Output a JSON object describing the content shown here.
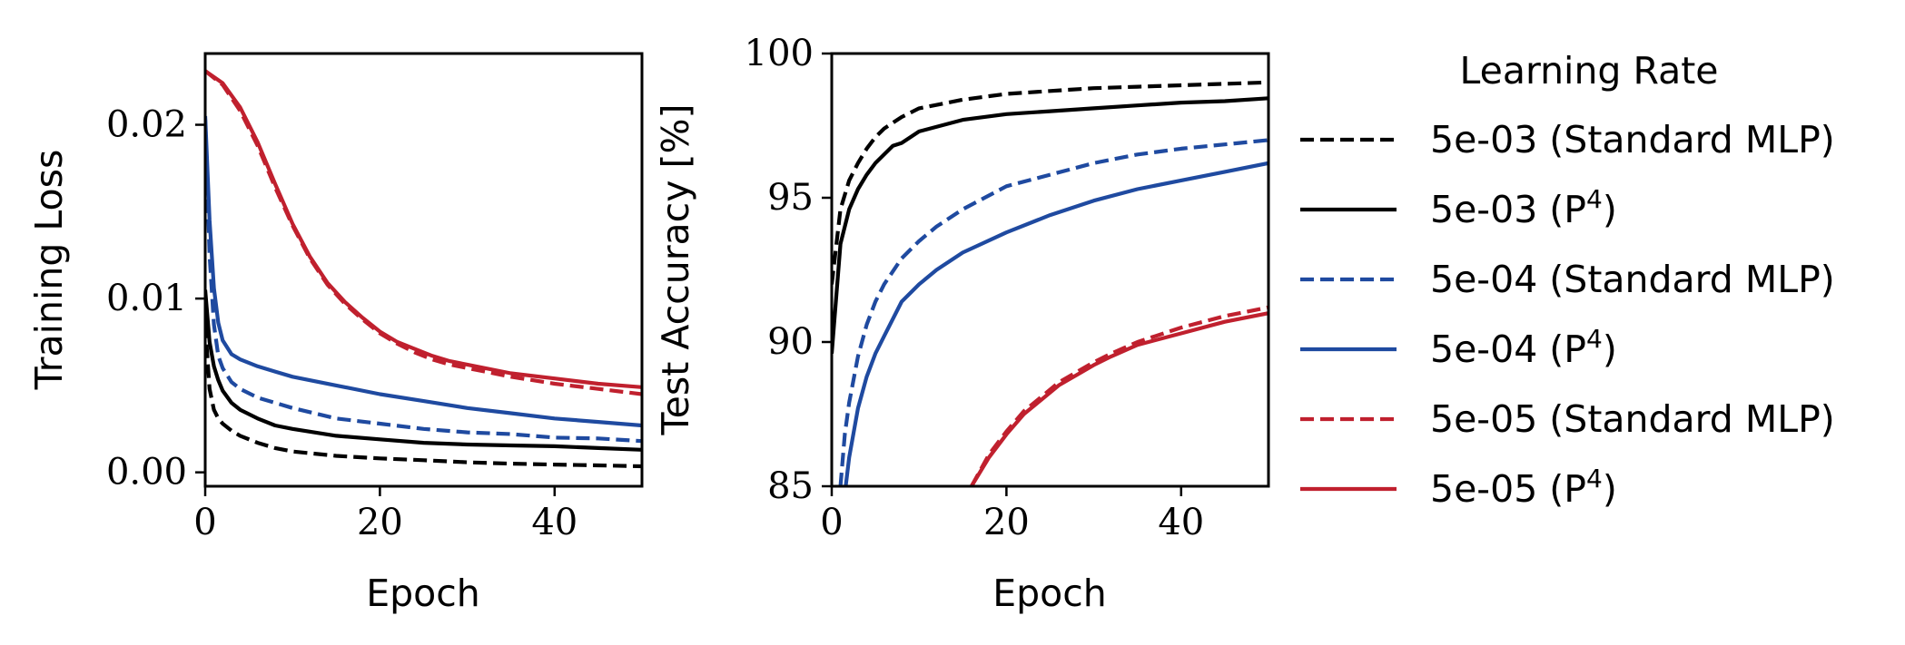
{
  "colors": {
    "black": "#000000",
    "blue": "#1f4aa0",
    "red": "#c0202e"
  },
  "legend": {
    "title": "Learning Rate",
    "entries": [
      {
        "label": "5e-03 (Standard MLP)",
        "color": "black",
        "dash": true
      },
      {
        "label": "5e-03 (P",
        "sup": "4",
        "suffix": ")",
        "color": "black",
        "dash": false
      },
      {
        "label": "5e-04 (Standard MLP)",
        "color": "blue",
        "dash": true
      },
      {
        "label": "5e-04 (P",
        "sup": "4",
        "suffix": ")",
        "color": "blue",
        "dash": false
      },
      {
        "label": "5e-05 (Standard MLP)",
        "color": "red",
        "dash": true
      },
      {
        "label": "5e-05 (P",
        "sup": "4",
        "suffix": ")",
        "color": "red",
        "dash": false
      }
    ]
  },
  "chart_data": [
    {
      "type": "line",
      "xlabel": "Epoch",
      "ylabel": "Training Loss",
      "xlim": [
        0,
        50
      ],
      "ylim": [
        -0.0008,
        0.0241
      ],
      "xticks": [
        0,
        20,
        40
      ],
      "xtick_labels": [
        "0",
        "20",
        "40"
      ],
      "yticks": [
        0.0,
        0.01,
        0.02
      ],
      "ytick_labels": [
        "0.00",
        "0.01",
        "0.02"
      ],
      "series": [
        {
          "name": "5e-03 (Standard MLP)",
          "color": "black",
          "dash": true,
          "x": [
            0,
            0.5,
            1,
            1.5,
            2,
            3,
            4,
            6,
            8,
            10,
            15,
            20,
            25,
            30,
            35,
            40,
            45,
            50
          ],
          "y": [
            0.0085,
            0.0048,
            0.0036,
            0.0031,
            0.0028,
            0.0024,
            0.0021,
            0.0017,
            0.0014,
            0.0012,
            0.00095,
            0.0008,
            0.0007,
            0.00058,
            0.0005,
            0.00045,
            0.0004,
            0.00035
          ]
        },
        {
          "name": "5e-03 (P4)",
          "color": "black",
          "dash": false,
          "x": [
            0,
            0.5,
            1,
            1.5,
            2,
            3,
            4,
            6,
            8,
            10,
            15,
            20,
            25,
            30,
            35,
            40,
            45,
            50
          ],
          "y": [
            0.0105,
            0.0075,
            0.0061,
            0.0053,
            0.0047,
            0.004,
            0.0036,
            0.0031,
            0.0027,
            0.0025,
            0.0021,
            0.0019,
            0.0017,
            0.0016,
            0.00155,
            0.0015,
            0.0014,
            0.0013
          ]
        },
        {
          "name": "5e-04 (Standard MLP)",
          "color": "blue",
          "dash": true,
          "x": [
            0,
            0.5,
            1,
            1.5,
            2,
            3,
            4,
            6,
            8,
            10,
            15,
            20,
            25,
            30,
            35,
            40,
            45,
            50
          ],
          "y": [
            0.0203,
            0.0125,
            0.0085,
            0.0067,
            0.006,
            0.0052,
            0.0048,
            0.0043,
            0.004,
            0.0037,
            0.0031,
            0.0028,
            0.0025,
            0.0023,
            0.0022,
            0.002,
            0.00195,
            0.0018
          ]
        },
        {
          "name": "5e-04 (P4)",
          "color": "blue",
          "dash": false,
          "x": [
            0,
            0.5,
            1,
            1.5,
            2,
            3,
            4,
            6,
            8,
            10,
            15,
            20,
            25,
            30,
            35,
            40,
            45,
            50
          ],
          "y": [
            0.0205,
            0.0145,
            0.0106,
            0.0086,
            0.0076,
            0.0068,
            0.0065,
            0.0061,
            0.0058,
            0.0055,
            0.005,
            0.0045,
            0.0041,
            0.0037,
            0.0034,
            0.0031,
            0.0029,
            0.0027
          ]
        },
        {
          "name": "5e-05 (Standard MLP)",
          "color": "red",
          "dash": true,
          "x": [
            0,
            2,
            4,
            6,
            8,
            10,
            12,
            14,
            16,
            18,
            20,
            22,
            24,
            26,
            28,
            30,
            35,
            40,
            45,
            50
          ],
          "y": [
            0.0231,
            0.0223,
            0.0208,
            0.0188,
            0.0164,
            0.0142,
            0.0123,
            0.0108,
            0.0097,
            0.0088,
            0.008,
            0.0074,
            0.0069,
            0.0065,
            0.0062,
            0.006,
            0.0055,
            0.0051,
            0.0048,
            0.0045
          ]
        },
        {
          "name": "5e-05 (P4)",
          "color": "red",
          "dash": false,
          "x": [
            0,
            2,
            4,
            6,
            8,
            10,
            12,
            14,
            16,
            18,
            20,
            22,
            24,
            26,
            28,
            30,
            35,
            40,
            45,
            50
          ],
          "y": [
            0.0231,
            0.0224,
            0.021,
            0.019,
            0.0166,
            0.0143,
            0.0124,
            0.0109,
            0.0098,
            0.0089,
            0.0081,
            0.0075,
            0.0071,
            0.0067,
            0.0064,
            0.0062,
            0.0057,
            0.0054,
            0.0051,
            0.0049
          ]
        }
      ]
    },
    {
      "type": "line",
      "xlabel": "Epoch",
      "ylabel": "Test Accuracy [%]",
      "xlim": [
        0,
        50
      ],
      "ylim": [
        85,
        100
      ],
      "xticks": [
        0,
        20,
        40
      ],
      "xtick_labels": [
        "0",
        "20",
        "40"
      ],
      "yticks": [
        85,
        90,
        95,
        100
      ],
      "ytick_labels": [
        "85",
        "90",
        "95",
        "100"
      ],
      "series": [
        {
          "name": "5e-03 (Standard MLP)",
          "color": "black",
          "dash": true,
          "x": [
            0,
            0.5,
            1,
            2,
            3,
            4,
            5,
            6,
            8,
            10,
            15,
            20,
            25,
            30,
            35,
            40,
            45,
            50
          ],
          "y": [
            92.0,
            93.3,
            94.6,
            95.6,
            96.2,
            96.7,
            97.1,
            97.4,
            97.8,
            98.1,
            98.4,
            98.6,
            98.7,
            98.8,
            98.85,
            98.9,
            98.95,
            99.0
          ]
        },
        {
          "name": "5e-03 (P4)",
          "color": "black",
          "dash": false,
          "x": [
            0,
            0.5,
            1,
            2,
            3,
            4,
            5,
            6,
            7,
            8,
            10,
            15,
            20,
            25,
            30,
            35,
            40,
            45,
            50
          ],
          "y": [
            89.6,
            91.5,
            93.4,
            94.6,
            95.3,
            95.8,
            96.2,
            96.5,
            96.8,
            96.9,
            97.3,
            97.7,
            97.9,
            98.0,
            98.1,
            98.2,
            98.3,
            98.35,
            98.45
          ]
        },
        {
          "name": "5e-04 (Standard MLP)",
          "color": "blue",
          "dash": true,
          "x": [
            1.0,
            1.5,
            2,
            3,
            4,
            5,
            6,
            8,
            10,
            12,
            15,
            20,
            25,
            30,
            35,
            40,
            45,
            50
          ],
          "y": [
            85.0,
            86.8,
            87.9,
            89.5,
            90.6,
            91.4,
            92.0,
            92.9,
            93.5,
            94.0,
            94.6,
            95.4,
            95.8,
            96.2,
            96.5,
            96.7,
            96.85,
            97.0
          ]
        },
        {
          "name": "5e-04 (P4)",
          "color": "blue",
          "dash": false,
          "x": [
            1.6,
            2,
            3,
            4,
            5,
            6,
            8,
            10,
            12,
            15,
            20,
            25,
            30,
            35,
            40,
            45,
            50
          ],
          "y": [
            85.0,
            86.0,
            87.7,
            88.8,
            89.6,
            90.2,
            91.4,
            92.0,
            92.5,
            93.1,
            93.8,
            94.4,
            94.9,
            95.3,
            95.6,
            95.9,
            96.2
          ]
        },
        {
          "name": "5e-05 (Standard MLP)",
          "color": "red",
          "dash": true,
          "x": [
            16.0,
            18,
            20,
            22,
            24,
            26,
            28,
            30,
            32,
            35,
            40,
            45,
            50
          ],
          "y": [
            85.0,
            86.1,
            86.9,
            87.6,
            88.1,
            88.6,
            88.95,
            89.3,
            89.6,
            90.0,
            90.5,
            90.9,
            91.2
          ]
        },
        {
          "name": "5e-05 (P4)",
          "color": "red",
          "dash": false,
          "x": [
            16.0,
            18,
            20,
            22,
            24,
            26,
            28,
            30,
            32,
            35,
            40,
            45,
            50
          ],
          "y": [
            85.0,
            86.0,
            86.8,
            87.5,
            88.0,
            88.5,
            88.85,
            89.2,
            89.5,
            89.9,
            90.3,
            90.7,
            91.0
          ]
        }
      ]
    }
  ]
}
